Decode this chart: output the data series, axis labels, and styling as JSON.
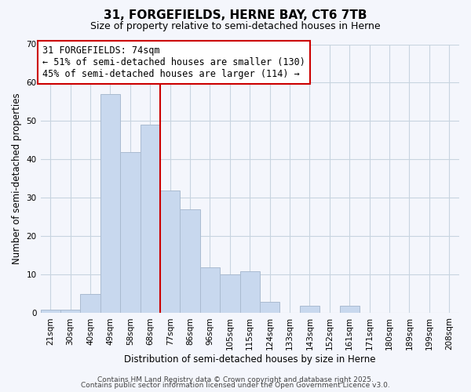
{
  "title": "31, FORGEFIELDS, HERNE BAY, CT6 7TB",
  "subtitle": "Size of property relative to semi-detached houses in Herne",
  "xlabel": "Distribution of semi-detached houses by size in Herne",
  "ylabel": "Number of semi-detached properties",
  "bar_labels": [
    "21sqm",
    "30sqm",
    "40sqm",
    "49sqm",
    "58sqm",
    "68sqm",
    "77sqm",
    "86sqm",
    "96sqm",
    "105sqm",
    "115sqm",
    "124sqm",
    "133sqm",
    "143sqm",
    "152sqm",
    "161sqm",
    "171sqm",
    "180sqm",
    "189sqm",
    "199sqm",
    "208sqm"
  ],
  "bar_values": [
    1,
    1,
    5,
    57,
    42,
    49,
    32,
    27,
    12,
    10,
    11,
    3,
    0,
    2,
    0,
    2,
    0,
    0,
    0,
    0,
    0
  ],
  "bar_color": "#c8d8ee",
  "bar_edge_color": "#aabbd0",
  "highlight_line_index": 6,
  "highlight_line_color": "#cc0000",
  "ylim": [
    0,
    70
  ],
  "yticks": [
    0,
    10,
    20,
    30,
    40,
    50,
    60,
    70
  ],
  "grid_color": "#c8d4e0",
  "background_color": "#f4f6fc",
  "annotation_title": "31 FORGEFIELDS: 74sqm",
  "annotation_line1": "← 51% of semi-detached houses are smaller (130)",
  "annotation_line2": "45% of semi-detached houses are larger (114) →",
  "annotation_box_color": "#ffffff",
  "annotation_box_edge": "#cc0000",
  "footer_line1": "Contains HM Land Registry data © Crown copyright and database right 2025.",
  "footer_line2": "Contains public sector information licensed under the Open Government Licence v3.0.",
  "title_fontsize": 11,
  "subtitle_fontsize": 9,
  "axis_label_fontsize": 8.5,
  "tick_fontsize": 7.5,
  "annotation_fontsize": 8.5,
  "footer_fontsize": 6.5
}
